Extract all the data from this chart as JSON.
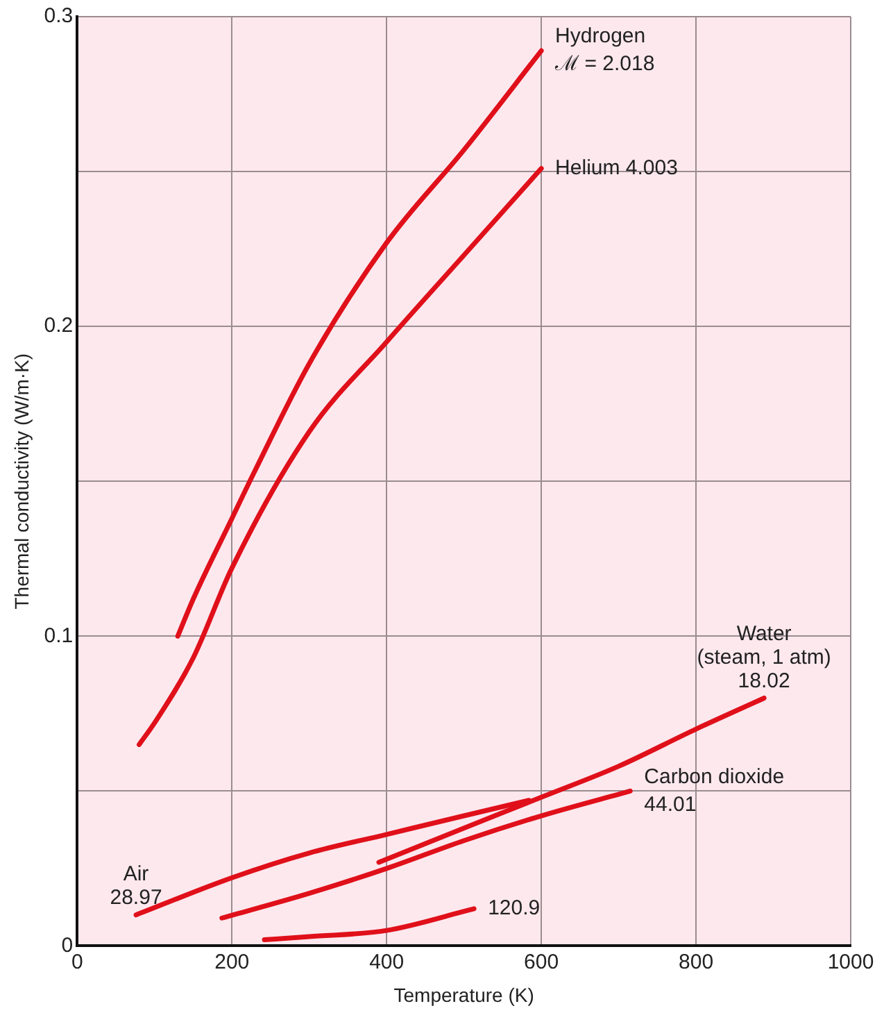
{
  "chart_data": {
    "type": "line",
    "xlabel": "Temperature (K)",
    "ylabel": "Thermal conductivity (W/m·K)",
    "xlim": [
      0,
      1000
    ],
    "xticks": [
      0,
      200,
      400,
      600,
      800,
      1000
    ],
    "ylim": [
      0,
      0.3
    ],
    "yticks": [
      0,
      {
        "value": 0.05,
        "label": null
      },
      0.1,
      {
        "value": 0.15,
        "label": null
      },
      0.2,
      {
        "value": 0.25,
        "label": null
      },
      0.3
    ],
    "grid": true,
    "legend": false,
    "marker": "none",
    "line_style": "solid",
    "series": [
      {
        "color": "#e0101a",
        "x": [
          130,
          150,
          200,
          229,
          300,
          400,
          500,
          600
        ],
        "values": [
          0.1,
          0.112,
          0.138,
          0.153,
          0.188,
          0.227,
          0.257,
          0.289
        ]
      },
      {
        "color": "#e0101a",
        "x": [
          80,
          100,
          150,
          200,
          300,
          400,
          500,
          600
        ],
        "values": [
          0.065,
          0.072,
          0.093,
          0.122,
          0.166,
          0.195,
          0.223,
          0.251
        ]
      },
      {
        "color": "#e0101a",
        "x": [
          390,
          500,
          600,
          700,
          800,
          888
        ],
        "values": [
          0.027,
          0.038,
          0.048,
          0.058,
          0.07,
          0.08
        ]
      },
      {
        "color": "#e0101a",
        "x": [
          187,
          300,
          400,
          500,
          600,
          715
        ],
        "values": [
          0.009,
          0.017,
          0.025,
          0.034,
          0.042,
          0.05
        ]
      },
      {
        "color": "#e0101a",
        "x": [
          76,
          200,
          300,
          400,
          500,
          584
        ],
        "values": [
          0.01,
          0.022,
          0.03,
          0.036,
          0.042,
          0.047
        ]
      },
      {
        "color": "#e0101a",
        "x": [
          242,
          300,
          400,
          513
        ],
        "values": [
          0.002,
          0.003,
          0.005,
          0.012
        ]
      }
    ],
    "annotations": [
      {
        "text": "Hydrogen",
        "x": 600,
        "y": 0.289
      },
      {
        "text": "ℳ = 2.018",
        "x": 600,
        "y": 0.289
      },
      {
        "text": "Helium 4.003",
        "x": 600,
        "y": 0.251
      },
      {
        "text": "Water",
        "x": 888,
        "y": 0.08
      },
      {
        "text": "(steam, 1 atm)",
        "x": 888,
        "y": 0.08
      },
      {
        "text": "18.02",
        "x": 888,
        "y": 0.08
      },
      {
        "text": "Carbon dioxide",
        "x": 715,
        "y": 0.05
      },
      {
        "text": "44.01",
        "x": 715,
        "y": 0.05
      },
      {
        "text": "Air",
        "x": 76,
        "y": 0.01
      },
      {
        "text": "28.97",
        "x": 76,
        "y": 0.01
      },
      {
        "text": "120.9",
        "x": 513,
        "y": 0.012
      }
    ]
  }
}
